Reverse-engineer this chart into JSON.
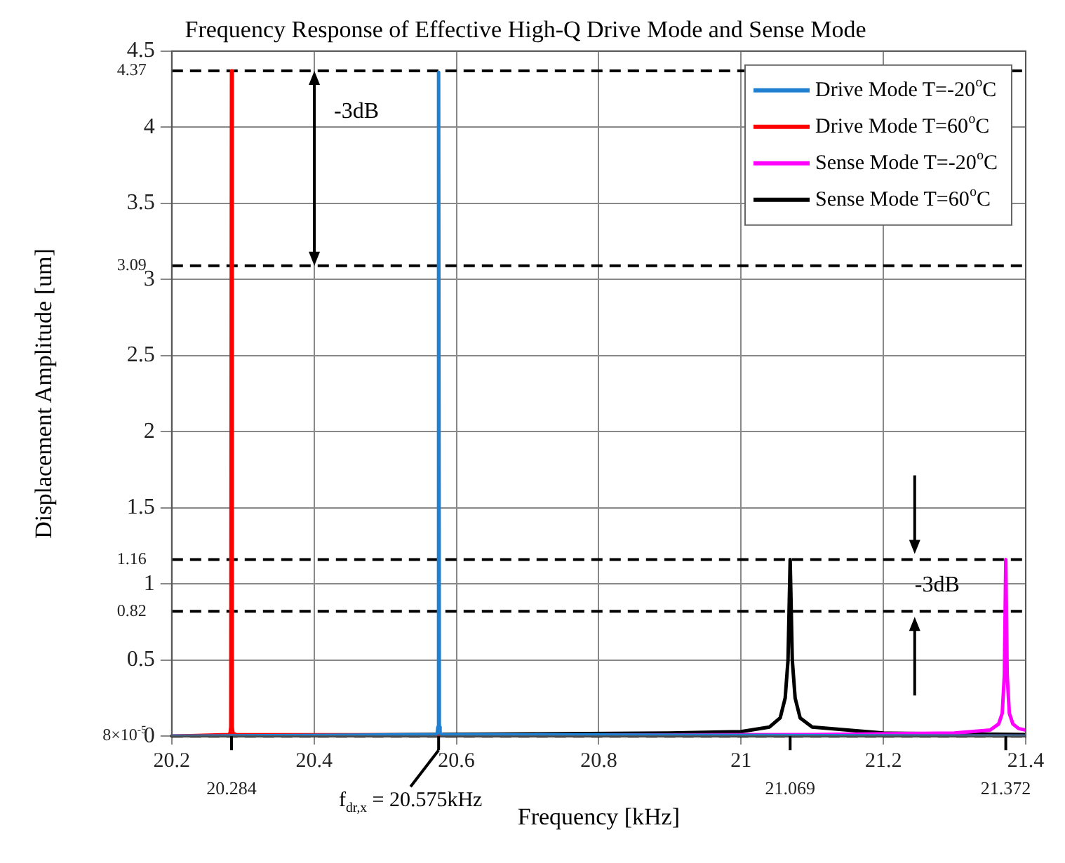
{
  "chart_data": {
    "type": "line",
    "title": "Frequency Response of Effective High-Q Drive Mode and Sense Mode",
    "xlabel": "Frequency [kHz]",
    "ylabel": "Displacement Amplitude [um]",
    "xlim": [
      20.2,
      21.4
    ],
    "ylim": [
      0,
      4.5
    ],
    "xticks": [
      20.2,
      20.4,
      20.6,
      20.8,
      21,
      21.2,
      21.4
    ],
    "yticks": [
      0,
      0.5,
      1,
      1.5,
      2,
      2.5,
      3,
      3.5,
      4,
      4.5
    ],
    "grid": true,
    "legend": "top right",
    "marker": "none",
    "line_style": "solid",
    "series": [
      {
        "name": "Drive Mode T=-20$^{o}$C",
        "color": "#1f7fd0",
        "x": [
          20.2,
          20.57,
          20.573,
          20.574,
          20.575,
          20.576,
          20.577,
          20.58,
          21.4
        ],
        "values": [
          0,
          0.01,
          0.02,
          0.06,
          4.36,
          0.06,
          0.02,
          0.01,
          0
        ]
      },
      {
        "name": "Drive Mode T=60$^{o}$C",
        "color": "#ff0000",
        "x": [
          20.2,
          20.28,
          20.282,
          20.283,
          20.284,
          20.285,
          20.286,
          20.29,
          21.4
        ],
        "values": [
          0,
          0.01,
          0.02,
          0.06,
          4.37,
          0.06,
          0.02,
          0.01,
          0
        ]
      },
      {
        "name": "Sense Mode T=-20$^{o}$C",
        "color": "#ff00ff",
        "x": [
          20.2,
          21.1,
          21.3,
          21.35,
          21.362,
          21.367,
          21.37,
          21.372,
          21.374,
          21.377,
          21.382,
          21.39,
          21.4
        ],
        "values": [
          0,
          0.01,
          0.02,
          0.04,
          0.08,
          0.15,
          0.4,
          1.16,
          0.4,
          0.15,
          0.08,
          0.05,
          0.04
        ]
      },
      {
        "name": "Sense Mode T=60$^{o}$C",
        "color": "#000000",
        "x": [
          20.2,
          20.9,
          21,
          21.04,
          21.055,
          21.062,
          21.066,
          21.069,
          21.072,
          21.076,
          21.083,
          21.1,
          21.2,
          21.4
        ],
        "values": [
          0,
          0.02,
          0.03,
          0.06,
          0.12,
          0.25,
          0.5,
          1.16,
          0.5,
          0.25,
          0.12,
          0.06,
          0.02,
          0.01
        ]
      }
    ],
    "ref_lines": [
      {
        "axis": "y",
        "value": 4.37,
        "label": "4.37",
        "color": "#000000",
        "line_style": "dashed"
      },
      {
        "axis": "y",
        "value": 3.09,
        "label": "3.09",
        "color": "#000000",
        "line_style": "dashed"
      },
      {
        "axis": "y",
        "value": 1.16,
        "label": "1.16",
        "color": "#000000",
        "line_style": "dashed"
      },
      {
        "axis": "y",
        "value": 0.82,
        "label": "0.82",
        "color": "#000000",
        "line_style": "dashed"
      },
      {
        "axis": "y",
        "value": 8e-05,
        "label": "8×10$^{-5}$",
        "color": "#000000",
        "line_style": "dashed"
      }
    ],
    "annotations": [
      "-3dB",
      "-3dB",
      {
        "text": "f$_{dr,x}$ = 20.575kHz",
        "x": 20.575,
        "y": 0
      },
      {
        "text": "20.284",
        "x": 20.284,
        "y": 0
      },
      {
        "text": "21.069",
        "x": 21.069,
        "y": 0
      },
      {
        "text": "21.372",
        "x": 21.372,
        "y": 0
      }
    ]
  }
}
